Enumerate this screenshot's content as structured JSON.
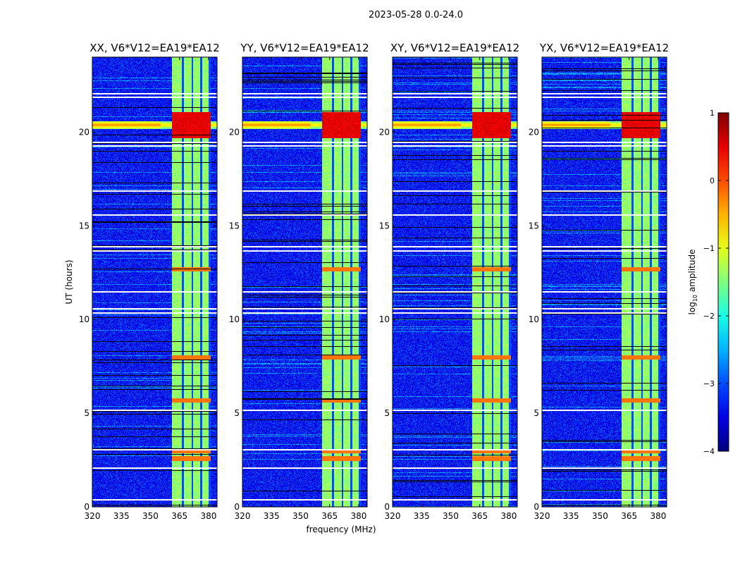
{
  "suptitle": "2023-05-28 0.0-24.0",
  "chart_data": [
    {
      "type": "heatmap",
      "title": "XX, V6*V12=EA19*EA12",
      "xlabel": "",
      "ylabel": "UT (hours)",
      "xlim": [
        320,
        384.4
      ],
      "ylim": [
        0,
        24
      ],
      "xticks": [
        "320",
        "335",
        "350",
        "365",
        "380"
      ],
      "yticks": [
        "0",
        "5",
        "10",
        "15",
        "20"
      ],
      "rfi_band_mhz": [
        361,
        381
      ],
      "rfi_gap_channels_mhz": [
        366.5,
        371.5,
        376,
        380.5
      ],
      "strong_rfi_hours": [
        19.7,
        21.1
      ],
      "flagged_hours": [
        0.4,
        2.1,
        3.1,
        5.2,
        10.4,
        10.6,
        11.5,
        13.7,
        13.9,
        15.6,
        16.9,
        19.3,
        19.5,
        21.9,
        22.1
      ],
      "background_log10_amplitude": -3.3
    },
    {
      "type": "heatmap",
      "title": "YY, V6*V12=EA19*EA12",
      "xlabel": "frequency (MHz)",
      "ylabel": "",
      "xlim": [
        320,
        384.4
      ],
      "ylim": [
        0,
        24
      ],
      "xticks": [
        "320",
        "335",
        "350",
        "365",
        "380"
      ],
      "yticks": [
        "0",
        "5",
        "10",
        "15",
        "20"
      ],
      "rfi_band_mhz": [
        361,
        381
      ],
      "rfi_gap_channels_mhz": [
        366.5,
        371.5,
        376,
        380.5
      ],
      "strong_rfi_hours": [
        19.7,
        21.1
      ],
      "flagged_hours": [
        0.4,
        2.1,
        3.1,
        5.2,
        10.4,
        10.6,
        11.5,
        13.7,
        13.9,
        15.6,
        16.9,
        19.3,
        19.5,
        21.9,
        22.1
      ],
      "background_log10_amplitude": -3.3
    },
    {
      "type": "heatmap",
      "title": "XY, V6*V12=EA19*EA12",
      "xlabel": "",
      "ylabel": "",
      "xlim": [
        320,
        384.4
      ],
      "ylim": [
        0,
        24
      ],
      "xticks": [
        "320",
        "335",
        "350",
        "365",
        "380"
      ],
      "yticks": [
        "0",
        "5",
        "10",
        "15",
        "20"
      ],
      "rfi_band_mhz": [
        361,
        381
      ],
      "rfi_gap_channels_mhz": [
        366.5,
        371.5,
        376,
        380.5
      ],
      "strong_rfi_hours": [
        19.7,
        21.1
      ],
      "flagged_hours": [
        0.4,
        2.1,
        3.1,
        5.2,
        10.4,
        10.6,
        11.5,
        13.7,
        13.9,
        15.6,
        16.9,
        19.3,
        19.5,
        21.9,
        22.1
      ],
      "background_log10_amplitude": -3.3
    },
    {
      "type": "heatmap",
      "title": "YX, V6*V12=EA19*EA12",
      "xlabel": "",
      "ylabel": "",
      "xlim": [
        320,
        384.4
      ],
      "ylim": [
        0,
        24
      ],
      "xticks": [
        "320",
        "335",
        "350",
        "365",
        "380"
      ],
      "yticks": [
        "0",
        "5",
        "10",
        "15",
        "20"
      ],
      "rfi_band_mhz": [
        361,
        381
      ],
      "rfi_gap_channels_mhz": [
        366.5,
        371.5,
        376,
        380.5
      ],
      "strong_rfi_hours": [
        19.7,
        21.1
      ],
      "flagged_hours": [
        0.4,
        2.1,
        3.1,
        5.2,
        10.4,
        10.6,
        11.5,
        13.7,
        13.9,
        15.6,
        16.9,
        19.3,
        19.5,
        21.9,
        22.1
      ],
      "background_log10_amplitude": -3.3
    }
  ],
  "colorbar": {
    "label": "log10 amplitude",
    "label_main": "log",
    "label_sub": "10",
    "label_rest": " amplitude",
    "range": [
      -4,
      1
    ],
    "ticks": [
      "1",
      "0",
      "−1",
      "−2",
      "−3",
      "−4"
    ],
    "colormap": "jet"
  }
}
